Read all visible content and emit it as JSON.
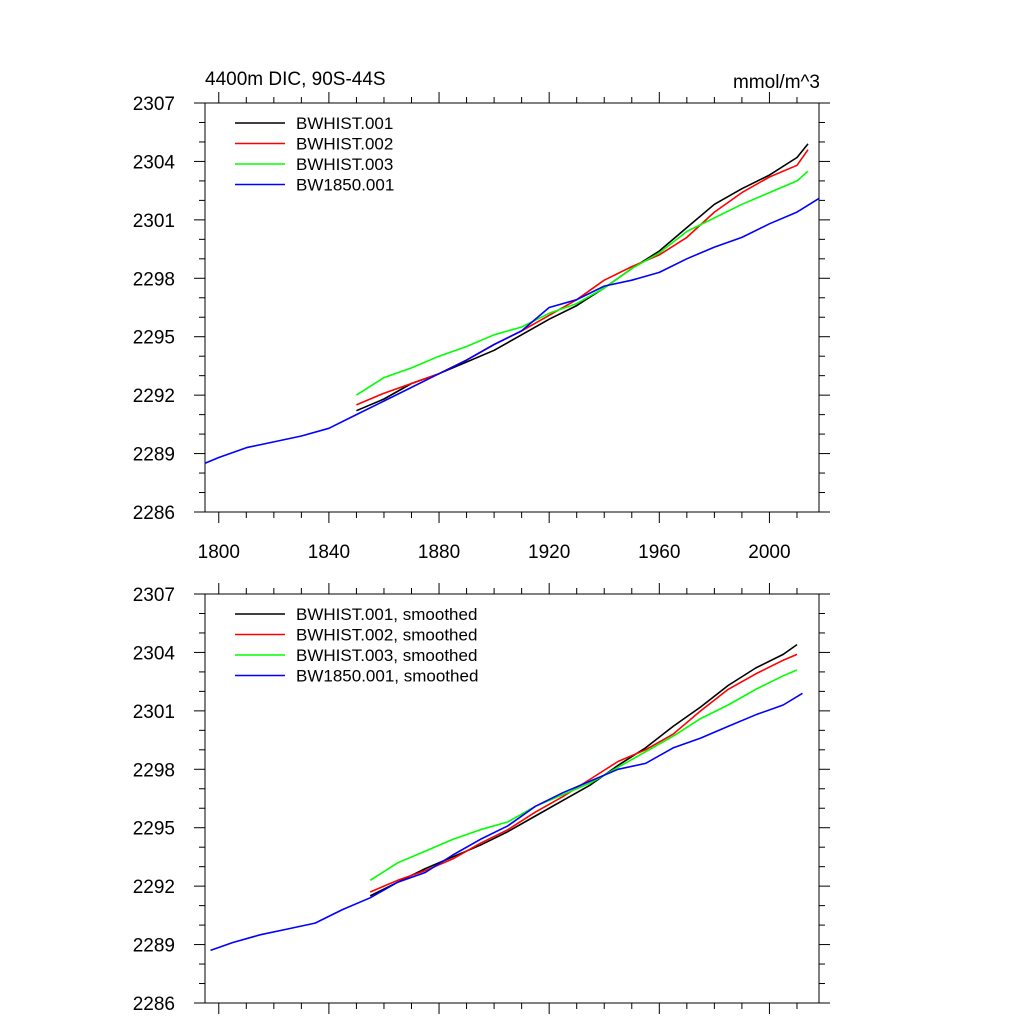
{
  "chart_data": [
    {
      "type": "line",
      "title_left": "4400m DIC, 90S-44S",
      "title_right": "mmol/m^3",
      "xlabel": "",
      "ylabel": "",
      "xlim": [
        1795,
        2018
      ],
      "ylim": [
        2286,
        2307
      ],
      "xticks": [
        1800,
        1840,
        1880,
        1920,
        1960,
        2000
      ],
      "yticks": [
        2286,
        2289,
        2292,
        2295,
        2298,
        2301,
        2304,
        2307
      ],
      "x_tick_labels_shown": true,
      "legend_position": "top-left",
      "series": [
        {
          "name": "BWHIST.001",
          "color": "#000000",
          "x": [
            1850,
            1860,
            1870,
            1880,
            1890,
            1900,
            1910,
            1920,
            1930,
            1940,
            1950,
            1960,
            1970,
            1980,
            1990,
            2000,
            2010,
            2014
          ],
          "y": [
            2291.2,
            2291.8,
            2292.6,
            2293.1,
            2293.7,
            2294.3,
            2295.1,
            2295.9,
            2296.6,
            2297.5,
            2298.5,
            2299.4,
            2300.6,
            2301.8,
            2302.6,
            2303.3,
            2304.2,
            2304.9
          ]
        },
        {
          "name": "BWHIST.002",
          "color": "#ff0000",
          "x": [
            1850,
            1860,
            1870,
            1880,
            1890,
            1900,
            1910,
            1920,
            1930,
            1940,
            1950,
            1960,
            1970,
            1980,
            1990,
            2000,
            2010,
            2014
          ],
          "y": [
            2291.5,
            2292.1,
            2292.6,
            2293.1,
            2293.8,
            2294.6,
            2295.3,
            2296.1,
            2296.9,
            2297.9,
            2298.6,
            2299.2,
            2300.1,
            2301.4,
            2302.4,
            2303.2,
            2303.8,
            2304.6
          ]
        },
        {
          "name": "BWHIST.003",
          "color": "#00ff00",
          "x": [
            1850,
            1860,
            1870,
            1880,
            1890,
            1900,
            1910,
            1920,
            1930,
            1940,
            1950,
            1960,
            1970,
            1980,
            1990,
            2000,
            2010,
            2014
          ],
          "y": [
            2292.0,
            2292.9,
            2293.4,
            2294.0,
            2294.5,
            2295.1,
            2295.5,
            2296.2,
            2296.7,
            2297.5,
            2298.5,
            2299.3,
            2300.4,
            2301.1,
            2301.8,
            2302.4,
            2303.0,
            2303.5
          ]
        },
        {
          "name": "BW1850.001",
          "color": "#0000ff",
          "x": [
            1795,
            1800,
            1810,
            1820,
            1830,
            1840,
            1850,
            1860,
            1870,
            1880,
            1890,
            1900,
            1910,
            1920,
            1930,
            1940,
            1950,
            1960,
            1970,
            1980,
            1990,
            2000,
            2010,
            2018
          ],
          "y": [
            2288.5,
            2288.8,
            2289.3,
            2289.6,
            2289.9,
            2290.3,
            2291.0,
            2291.7,
            2292.4,
            2293.1,
            2293.8,
            2294.6,
            2295.3,
            2296.5,
            2296.9,
            2297.6,
            2297.9,
            2298.3,
            2299.0,
            2299.6,
            2300.1,
            2300.8,
            2301.4,
            2302.1
          ]
        }
      ]
    },
    {
      "type": "line",
      "xlabel": "",
      "ylabel": "",
      "xlim": [
        1795,
        2018
      ],
      "ylim": [
        2286,
        2307
      ],
      "xticks": [
        1800,
        1840,
        1880,
        1920,
        1960,
        2000
      ],
      "yticks": [
        2286,
        2289,
        2292,
        2295,
        2298,
        2301,
        2304,
        2307
      ],
      "x_tick_labels_shown": false,
      "legend_position": "top-left",
      "series": [
        {
          "name": "BWHIST.001, smoothed",
          "color": "#000000",
          "x": [
            1855,
            1865,
            1875,
            1885,
            1895,
            1905,
            1915,
            1925,
            1935,
            1945,
            1955,
            1965,
            1975,
            1985,
            1995,
            2005,
            2010
          ],
          "y": [
            2291.5,
            2292.2,
            2292.9,
            2293.5,
            2294.1,
            2294.8,
            2295.6,
            2296.4,
            2297.2,
            2298.2,
            2299.1,
            2300.2,
            2301.2,
            2302.3,
            2303.2,
            2303.9,
            2304.4
          ]
        },
        {
          "name": "BWHIST.002, smoothed",
          "color": "#ff0000",
          "x": [
            1855,
            1865,
            1875,
            1885,
            1895,
            1905,
            1915,
            1925,
            1935,
            1945,
            1955,
            1965,
            1975,
            1985,
            1995,
            2005,
            2010
          ],
          "y": [
            2291.7,
            2292.3,
            2292.8,
            2293.4,
            2294.2,
            2294.9,
            2295.8,
            2296.6,
            2297.5,
            2298.4,
            2299.0,
            2299.8,
            2301.0,
            2302.1,
            2302.9,
            2303.6,
            2303.9
          ]
        },
        {
          "name": "BWHIST.003, smoothed",
          "color": "#00ff00",
          "x": [
            1855,
            1865,
            1875,
            1885,
            1895,
            1905,
            1915,
            1925,
            1935,
            1945,
            1955,
            1965,
            1975,
            1985,
            1995,
            2005,
            2010
          ],
          "y": [
            2292.3,
            2293.2,
            2293.8,
            2294.4,
            2294.9,
            2295.3,
            2296.1,
            2296.7,
            2297.3,
            2298.1,
            2298.9,
            2299.7,
            2300.6,
            2301.3,
            2302.1,
            2302.8,
            2303.1
          ]
        },
        {
          "name": "BW1850.001, smoothed",
          "color": "#0000ff",
          "x": [
            1797,
            1805,
            1815,
            1825,
            1835,
            1845,
            1855,
            1865,
            1875,
            1885,
            1895,
            1905,
            1915,
            1925,
            1935,
            1945,
            1955,
            1965,
            1975,
            1985,
            1995,
            2005,
            2012
          ],
          "y": [
            2288.7,
            2289.1,
            2289.5,
            2289.8,
            2290.1,
            2290.8,
            2291.4,
            2292.2,
            2292.7,
            2293.6,
            2294.4,
            2295.1,
            2296.1,
            2296.8,
            2297.4,
            2298.0,
            2298.3,
            2299.1,
            2299.6,
            2300.2,
            2300.8,
            2301.3,
            2301.9
          ]
        }
      ]
    }
  ]
}
